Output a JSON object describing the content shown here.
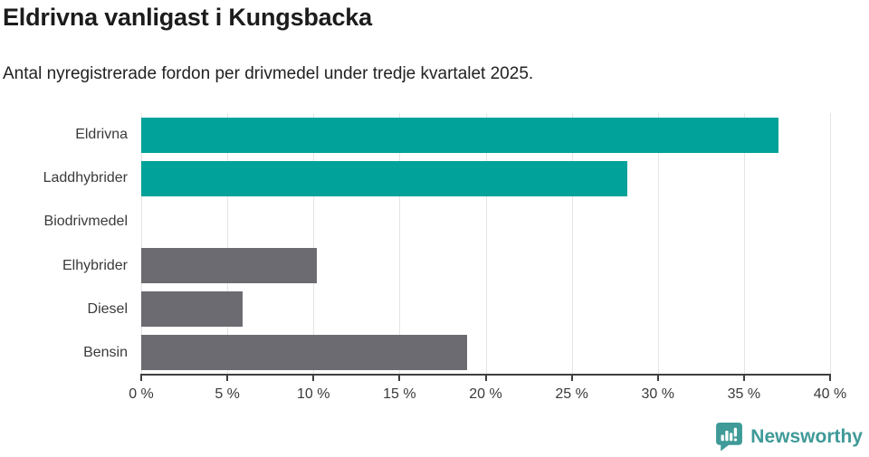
{
  "title": "Eldrivna vanligast i Kungsbacka",
  "subtitle": "Antal nyregistrerade fordon per drivmedel under tredje kvartalet 2025.",
  "chart_data": {
    "type": "bar",
    "orientation": "horizontal",
    "title": "Eldrivna vanligast i Kungsbacka",
    "subtitle": "Antal nyregistrerade fordon per drivmedel under tredje kvartalet 2025.",
    "categories": [
      "Eldrivna",
      "Laddhybrider",
      "Biodrivmedel",
      "Elhybrider",
      "Diesel",
      "Bensin"
    ],
    "values": [
      37.0,
      28.2,
      0,
      10.2,
      5.9,
      18.9
    ],
    "unit": "%",
    "xlabel": "",
    "ylabel": "",
    "xlim": [
      0,
      40
    ],
    "x_ticks": [
      0,
      5,
      10,
      15,
      20,
      25,
      30,
      35,
      40
    ],
    "x_tick_labels": [
      "0 %",
      "5 %",
      "10 %",
      "15 %",
      "20 %",
      "25 %",
      "30 %",
      "35 %",
      "40 %"
    ],
    "grid": "vertical-only",
    "legend": "none",
    "bar_colors": [
      "#00a29a",
      "#00a29a",
      "#6b6b71",
      "#6b6b71",
      "#6b6b71",
      "#6b6b71"
    ]
  },
  "colors": {
    "accent_teal": "#00a29a",
    "bar_gray": "#6b6b71",
    "gridline": "#e4e4e4",
    "axis_line": "#3f3f3f",
    "title_text": "#1c1c1c",
    "label_text": "#3a3a3a",
    "logo_teal": "#3f9a98"
  },
  "footer": {
    "brand": "Newsworthy",
    "logo_icon": "newsworthy-speech-bubble-barchart-icon"
  }
}
